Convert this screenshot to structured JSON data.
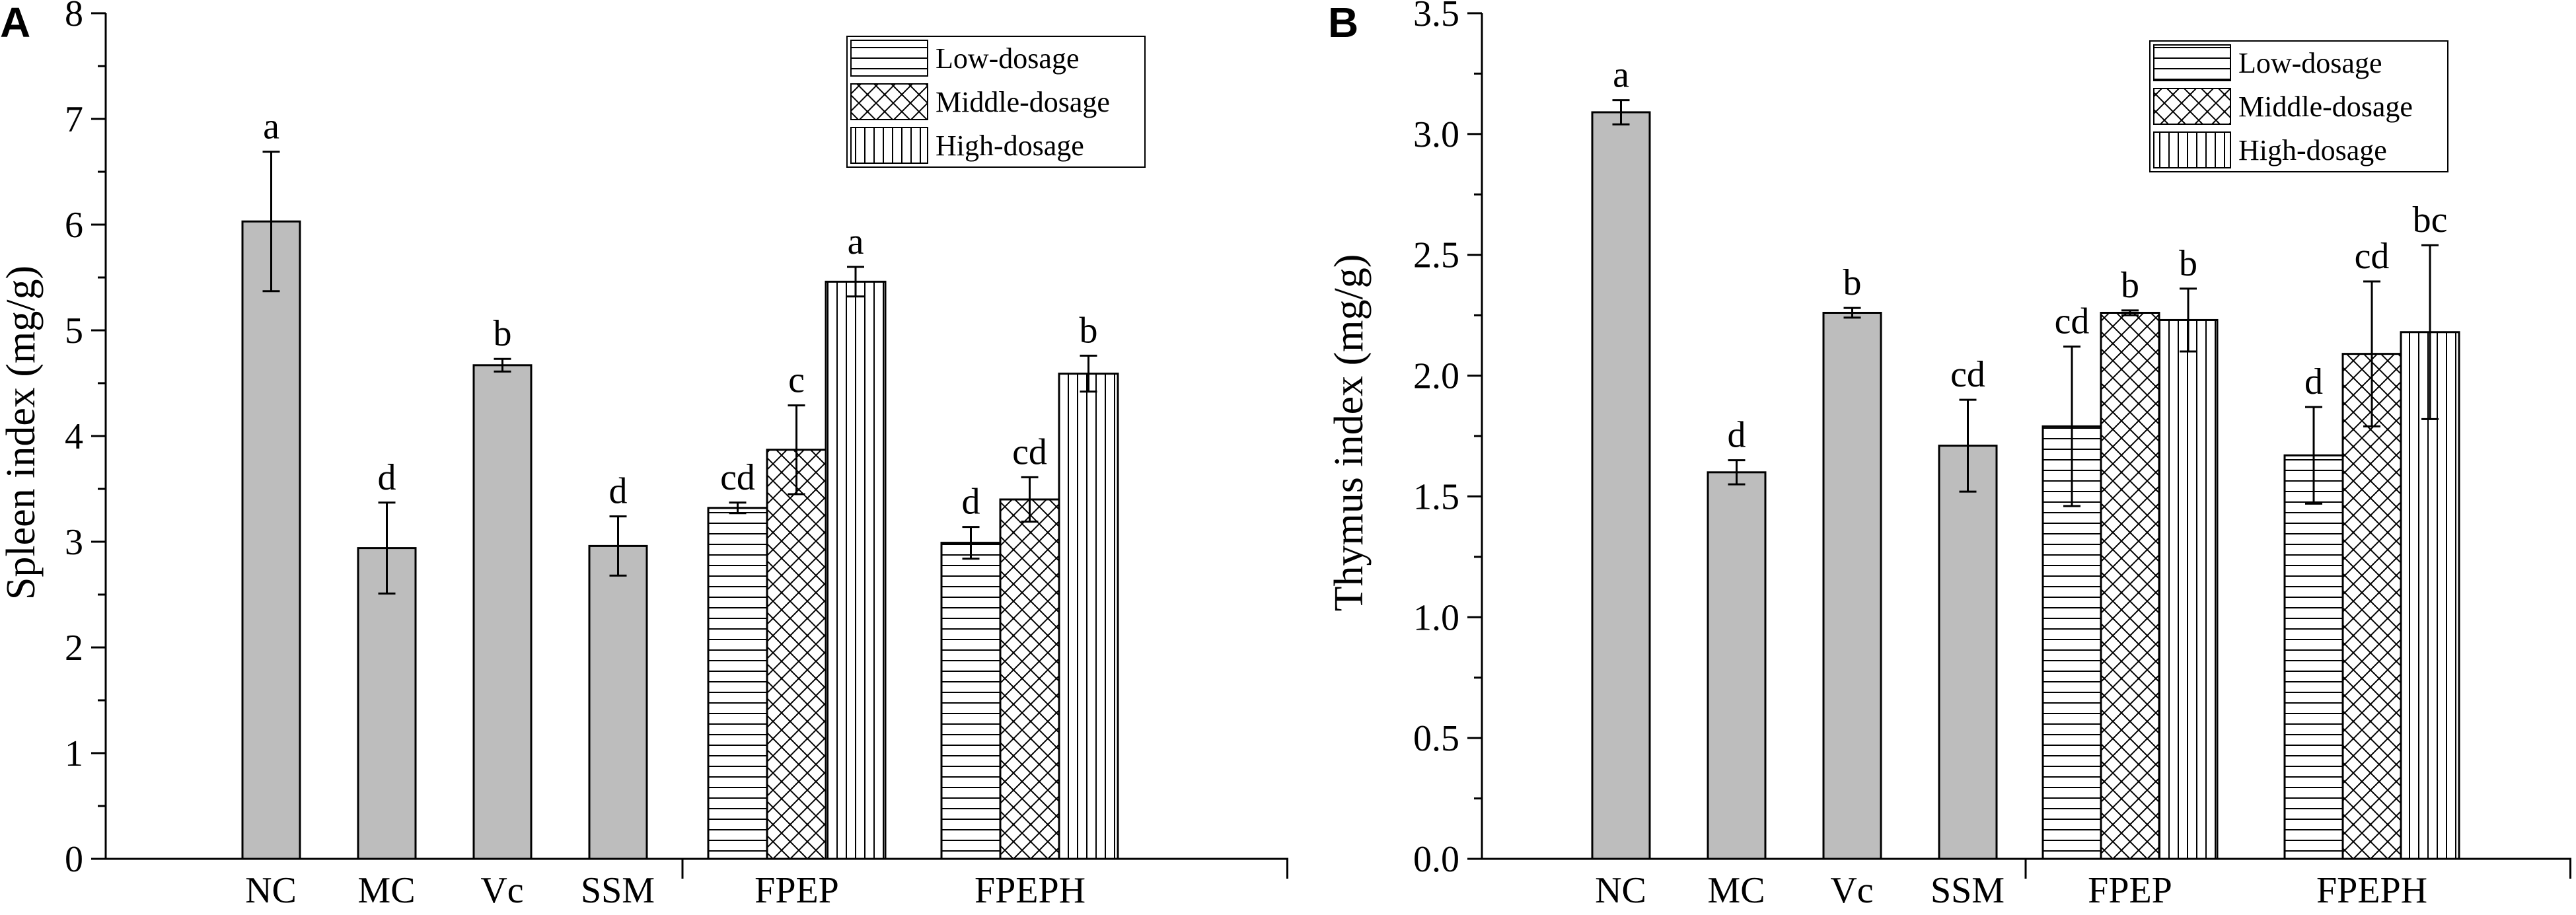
{
  "chart_data": [
    {
      "type": "bar",
      "panel_label": "A",
      "ylabel": "Spleen index (mg/g)",
      "ylim": [
        0,
        8
      ],
      "yticks": [
        "0",
        "1",
        "2",
        "3",
        "4",
        "5",
        "6",
        "7",
        "8"
      ],
      "groups": [
        "NC",
        "MC",
        "Vc",
        "SSM",
        "FPEP",
        "FPEPH"
      ],
      "legend": [
        "Low-dosage",
        "Middle-dosage",
        "High-dosage"
      ],
      "legend_position": "top-right",
      "bars": [
        {
          "group": "NC",
          "pattern": "solid",
          "value": 6.03,
          "error": 0.66,
          "label": "a"
        },
        {
          "group": "MC",
          "pattern": "solid",
          "value": 2.94,
          "error": 0.43,
          "label": "d"
        },
        {
          "group": "Vc",
          "pattern": "solid",
          "value": 4.67,
          "error": 0.06,
          "label": "b"
        },
        {
          "group": "SSM",
          "pattern": "solid",
          "value": 2.96,
          "error": 0.28,
          "label": "d"
        },
        {
          "group": "FPEP",
          "pattern": "low",
          "value": 3.32,
          "error": 0.05,
          "label": "cd"
        },
        {
          "group": "FPEP",
          "pattern": "middle",
          "value": 3.87,
          "error": 0.42,
          "label": "c"
        },
        {
          "group": "FPEP",
          "pattern": "high",
          "value": 5.46,
          "error": 0.14,
          "label": "a"
        },
        {
          "group": "FPEPH",
          "pattern": "low",
          "value": 2.99,
          "error": 0.15,
          "label": "d"
        },
        {
          "group": "FPEPH",
          "pattern": "middle",
          "value": 3.4,
          "error": 0.21,
          "label": "cd"
        },
        {
          "group": "FPEPH",
          "pattern": "high",
          "value": 4.59,
          "error": 0.17,
          "label": "b"
        }
      ]
    },
    {
      "type": "bar",
      "panel_label": "B",
      "ylabel": "Thymus index (mg/g)",
      "ylim": [
        0,
        3.5
      ],
      "yticks": [
        "0.0",
        "0.5",
        "1.0",
        "1.5",
        "2.0",
        "2.5",
        "3.0",
        "3.5"
      ],
      "groups": [
        "NC",
        "MC",
        "Vc",
        "SSM",
        "FPEP",
        "FPEPH"
      ],
      "legend": [
        "Low-dosage",
        "Middle-dosage",
        "High-dosage"
      ],
      "legend_position": "top-right",
      "bars": [
        {
          "group": "NC",
          "pattern": "solid",
          "value": 3.09,
          "error": 0.05,
          "label": "a"
        },
        {
          "group": "MC",
          "pattern": "solid",
          "value": 1.6,
          "error": 0.05,
          "label": "d"
        },
        {
          "group": "Vc",
          "pattern": "solid",
          "value": 2.26,
          "error": 0.02,
          "label": "b"
        },
        {
          "group": "SSM",
          "pattern": "solid",
          "value": 1.71,
          "error": 0.19,
          "label": "cd"
        },
        {
          "group": "FPEP",
          "pattern": "low",
          "value": 1.79,
          "error": 0.33,
          "label": "cd"
        },
        {
          "group": "FPEP",
          "pattern": "middle",
          "value": 2.26,
          "error": 0.01,
          "label": "b"
        },
        {
          "group": "FPEP",
          "pattern": "high",
          "value": 2.23,
          "error": 0.13,
          "label": "b"
        },
        {
          "group": "FPEPH",
          "pattern": "low",
          "value": 1.67,
          "error": 0.2,
          "label": "d"
        },
        {
          "group": "FPEPH",
          "pattern": "middle",
          "value": 2.09,
          "error": 0.3,
          "label": "cd"
        },
        {
          "group": "FPEPH",
          "pattern": "high",
          "value": 2.18,
          "error": 0.36,
          "label": "bc"
        }
      ]
    }
  ]
}
